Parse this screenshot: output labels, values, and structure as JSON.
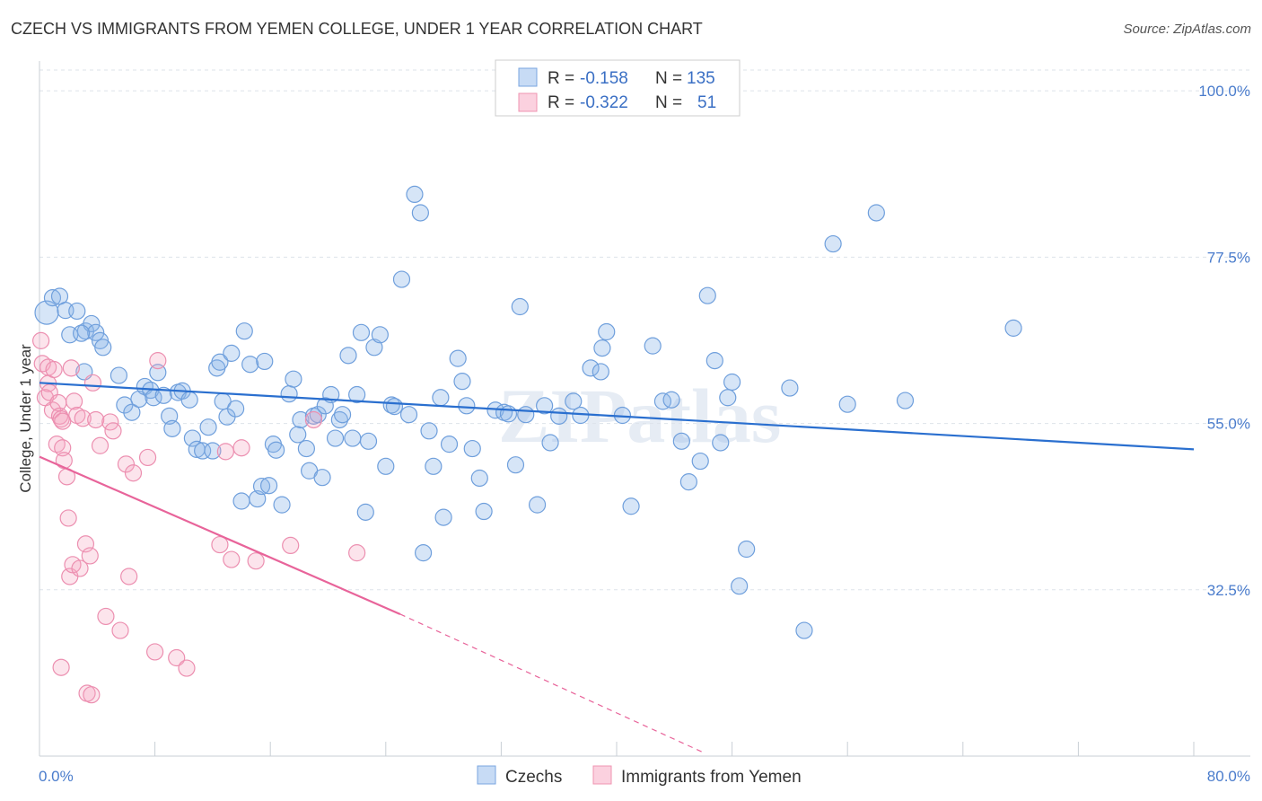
{
  "title": "CZECH VS IMMIGRANTS FROM YEMEN COLLEGE, UNDER 1 YEAR CORRELATION CHART",
  "source": "Source: ZipAtlas.com",
  "watermark": "ZIPatlas",
  "chart_data": {
    "type": "scatter",
    "title": "CZECH VS IMMIGRANTS FROM YEMEN COLLEGE, UNDER 1 YEAR CORRELATION CHART",
    "xlabel": "",
    "ylabel": "College, Under 1 year",
    "xlim": [
      0,
      80
    ],
    "ylim": [
      10,
      105
    ],
    "x_tick_labels": [
      "0.0%",
      "80.0%"
    ],
    "y_ticks": [
      100,
      77.5,
      55,
      32.5
    ],
    "y_tick_labels": [
      "100.0%",
      "77.5%",
      "55.0%",
      "32.5%"
    ],
    "grid": true,
    "legend_position": "top-center",
    "stats": [
      {
        "r_label": "R =",
        "r": "-0.158",
        "n_label": "N =",
        "n": "135"
      },
      {
        "r_label": "R =",
        "r": "-0.322",
        "n_label": "N =",
        "n": "51"
      }
    ],
    "series": [
      {
        "name": "Czechs",
        "color": "#8ab4e8",
        "line_color": "#2a6fcf",
        "trend": {
          "x": [
            0,
            80
          ],
          "y": [
            60.5,
            51.5
          ]
        },
        "points": [
          [
            0.5,
            70
          ],
          [
            0.9,
            72
          ],
          [
            1.4,
            72.2
          ],
          [
            1.8,
            70.3
          ],
          [
            2.1,
            67
          ],
          [
            2.6,
            70.2
          ],
          [
            3.2,
            67.5
          ],
          [
            3.6,
            68.5
          ],
          [
            3.9,
            67.3
          ],
          [
            4.2,
            66.2
          ],
          [
            4.4,
            65.3
          ],
          [
            2.9,
            67.2
          ],
          [
            3.1,
            62
          ],
          [
            5.5,
            61.5
          ],
          [
            5.9,
            57.5
          ],
          [
            6.4,
            56.5
          ],
          [
            6.9,
            58.3
          ],
          [
            7.3,
            60
          ],
          [
            7.7,
            59.5
          ],
          [
            7.9,
            58.5
          ],
          [
            8.2,
            61.9
          ],
          [
            8.6,
            58.8
          ],
          [
            9.0,
            56
          ],
          [
            9.2,
            54.3
          ],
          [
            9.6,
            59.2
          ],
          [
            9.9,
            59.4
          ],
          [
            10.4,
            58.2
          ],
          [
            10.6,
            53
          ],
          [
            10.9,
            51.5
          ],
          [
            11.3,
            51.3
          ],
          [
            11.7,
            54.5
          ],
          [
            12.0,
            51.3
          ],
          [
            12.3,
            62.5
          ],
          [
            12.5,
            63.3
          ],
          [
            12.7,
            58
          ],
          [
            13.0,
            55.9
          ],
          [
            13.3,
            64.5
          ],
          [
            13.6,
            57
          ],
          [
            14.0,
            44.5
          ],
          [
            14.2,
            67.5
          ],
          [
            14.6,
            63.0
          ],
          [
            15.1,
            44.8
          ],
          [
            15.4,
            46.5
          ],
          [
            15.6,
            63.4
          ],
          [
            15.9,
            46.6
          ],
          [
            16.2,
            52.2
          ],
          [
            16.4,
            51.4
          ],
          [
            16.8,
            44.0
          ],
          [
            17.3,
            59
          ],
          [
            17.6,
            61
          ],
          [
            17.9,
            53.5
          ],
          [
            18.1,
            55.5
          ],
          [
            18.5,
            51.6
          ],
          [
            18.7,
            48.6
          ],
          [
            19.0,
            56.0
          ],
          [
            19.3,
            56.2
          ],
          [
            19.6,
            47.7
          ],
          [
            19.8,
            57.4
          ],
          [
            20.2,
            58.9
          ],
          [
            20.5,
            53
          ],
          [
            20.8,
            55.5
          ],
          [
            21.0,
            56.2
          ],
          [
            21.4,
            64.2
          ],
          [
            21.7,
            53.0
          ],
          [
            22.0,
            58.9
          ],
          [
            22.3,
            67.3
          ],
          [
            22.6,
            43.0
          ],
          [
            22.8,
            52.6
          ],
          [
            23.2,
            65.3
          ],
          [
            23.6,
            67.0
          ],
          [
            24.0,
            49.2
          ],
          [
            24.4,
            57.5
          ],
          [
            24.6,
            57.3
          ],
          [
            25.1,
            74.5
          ],
          [
            25.6,
            56.2
          ],
          [
            26.0,
            86
          ],
          [
            26.4,
            83.5
          ],
          [
            26.6,
            37.5
          ],
          [
            27.0,
            54
          ],
          [
            27.3,
            49.2
          ],
          [
            27.8,
            58.5
          ],
          [
            28.0,
            42.3
          ],
          [
            28.4,
            52.2
          ],
          [
            29.0,
            63.8
          ],
          [
            29.3,
            60.7
          ],
          [
            29.6,
            57.4
          ],
          [
            30.0,
            51.6
          ],
          [
            30.5,
            47.6
          ],
          [
            30.8,
            43.1
          ],
          [
            31.6,
            56.8
          ],
          [
            32.2,
            56.5
          ],
          [
            32.5,
            56.3
          ],
          [
            33.0,
            49.4
          ],
          [
            33.3,
            70.8
          ],
          [
            33.7,
            56.2
          ],
          [
            34.5,
            44.0
          ],
          [
            35.0,
            57.4
          ],
          [
            35.4,
            52.4
          ],
          [
            36.0,
            56.0
          ],
          [
            37.0,
            58.0
          ],
          [
            37.5,
            56.1
          ],
          [
            38.2,
            62.5
          ],
          [
            38.9,
            62.0
          ],
          [
            39.0,
            65.2
          ],
          [
            39.3,
            67.4
          ],
          [
            40.4,
            56.1
          ],
          [
            41.0,
            43.8
          ],
          [
            42.5,
            65.5
          ],
          [
            43.2,
            58
          ],
          [
            43.8,
            58.2
          ],
          [
            44.5,
            52.6
          ],
          [
            45.0,
            47.1
          ],
          [
            45.8,
            49.9
          ],
          [
            46.3,
            72.3
          ],
          [
            46.8,
            63.5
          ],
          [
            47.2,
            52.4
          ],
          [
            47.7,
            58.5
          ],
          [
            48.0,
            60.6
          ],
          [
            48.5,
            33.0
          ],
          [
            49.0,
            38.0
          ],
          [
            52.0,
            59.8
          ],
          [
            53.0,
            27.0
          ],
          [
            55.0,
            79.3
          ],
          [
            56.0,
            57.6
          ],
          [
            58.0,
            83.5
          ],
          [
            60.0,
            58.1
          ],
          [
            67.5,
            67.9
          ]
        ]
      },
      {
        "name": "Immigrants from Yemen",
        "color": "#f4a7c0",
        "line_color": "#e8649a",
        "trend": {
          "x": [
            0,
            25
          ],
          "y": [
            50.5,
            29.2
          ]
        },
        "trend_dash": {
          "x": [
            25,
            46
          ],
          "y": [
            29.2,
            10.5
          ]
        },
        "points": [
          [
            0.1,
            66.2
          ],
          [
            0.2,
            63.1
          ],
          [
            0.4,
            58.5
          ],
          [
            0.6,
            60.4
          ],
          [
            0.6,
            62.6
          ],
          [
            0.7,
            59.2
          ],
          [
            0.9,
            56.8
          ],
          [
            1.0,
            62.3
          ],
          [
            1.2,
            52.2
          ],
          [
            1.3,
            57.8
          ],
          [
            1.4,
            56.0
          ],
          [
            1.5,
            55.6
          ],
          [
            1.6,
            55.3
          ],
          [
            1.6,
            51.7
          ],
          [
            1.7,
            50.0
          ],
          [
            1.9,
            47.8
          ],
          [
            2.0,
            42.2
          ],
          [
            2.1,
            34.3
          ],
          [
            2.2,
            62.5
          ],
          [
            2.3,
            35.9
          ],
          [
            2.4,
            58.0
          ],
          [
            2.6,
            56.1
          ],
          [
            2.8,
            35.4
          ],
          [
            3.0,
            55.7
          ],
          [
            3.2,
            38.7
          ],
          [
            3.5,
            37.1
          ],
          [
            3.7,
            60.5
          ],
          [
            3.9,
            55.5
          ],
          [
            4.2,
            52.0
          ],
          [
            4.6,
            28.9
          ],
          [
            4.9,
            55.2
          ],
          [
            5.1,
            54.0
          ],
          [
            5.6,
            27.0
          ],
          [
            6.0,
            49.5
          ],
          [
            6.2,
            34.3
          ],
          [
            6.5,
            48.3
          ],
          [
            7.5,
            50.4
          ],
          [
            8.0,
            24.1
          ],
          [
            8.2,
            63.5
          ],
          [
            9.5,
            23.3
          ],
          [
            10.2,
            21.9
          ],
          [
            12.5,
            38.6
          ],
          [
            12.9,
            51.2
          ],
          [
            13.3,
            36.6
          ],
          [
            14.0,
            51.7
          ],
          [
            15.0,
            36.4
          ],
          [
            17.4,
            38.5
          ],
          [
            19.0,
            55.5
          ],
          [
            22.0,
            37.5
          ],
          [
            1.5,
            22.0
          ],
          [
            3.3,
            18.5
          ],
          [
            3.6,
            18.3
          ]
        ]
      }
    ]
  }
}
